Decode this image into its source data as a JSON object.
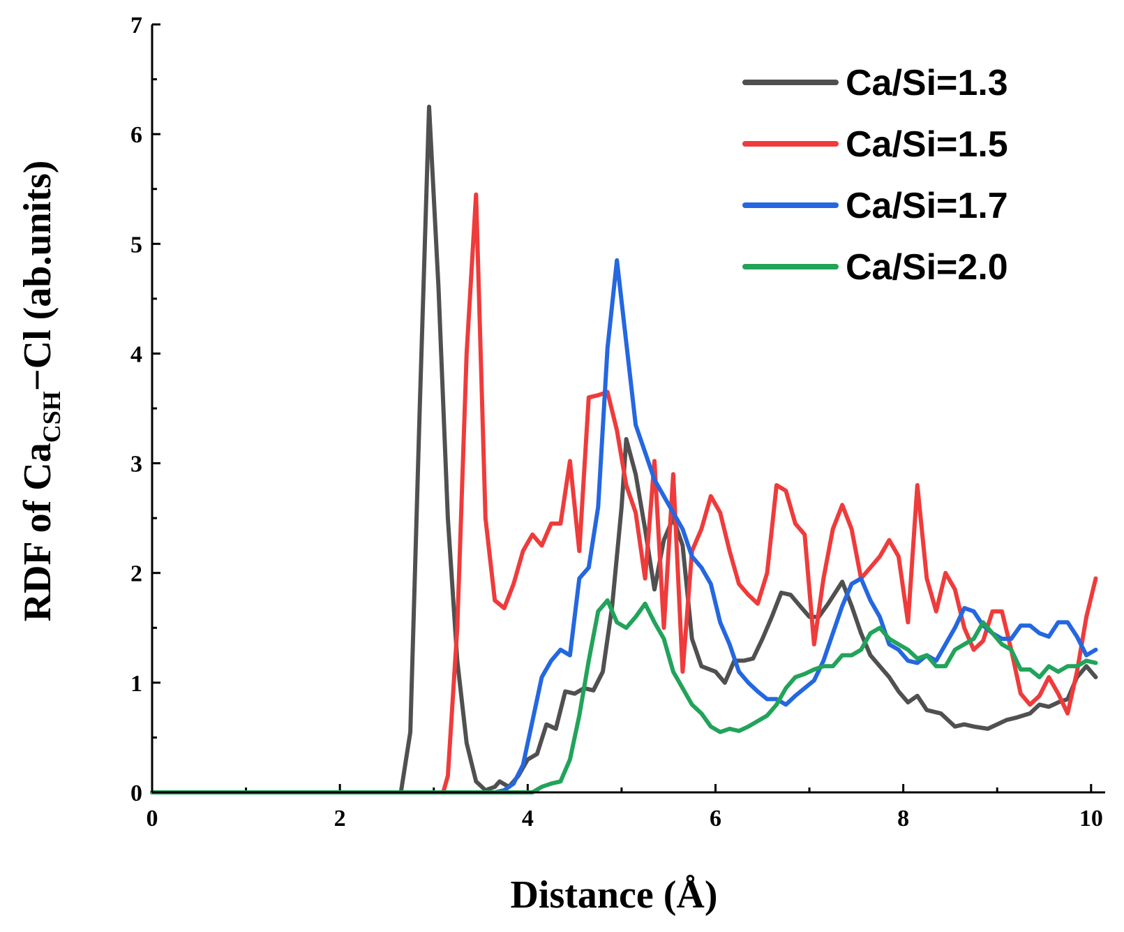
{
  "chart_data": {
    "type": "line",
    "xlabel": "Distance (Å)",
    "ylabel": {
      "prefix": "RDF of Ca",
      "subscript": "CSH",
      "suffix": "−Cl (ab.units)"
    },
    "xlim": [
      0,
      10.15
    ],
    "ylim": [
      0,
      7
    ],
    "x_ticks": [
      0,
      2,
      4,
      6,
      8,
      10
    ],
    "y_ticks": [
      0,
      1,
      2,
      3,
      4,
      5,
      6,
      7
    ],
    "legend_position": "top-right",
    "series": [
      {
        "name": "Ca/Si=1.3",
        "color": "#505050",
        "points": [
          [
            0,
            0
          ],
          [
            2.6,
            0
          ],
          [
            2.65,
            0
          ],
          [
            2.75,
            0.55
          ],
          [
            2.85,
            3.5
          ],
          [
            2.95,
            6.25
          ],
          [
            3.05,
            4.6
          ],
          [
            3.15,
            2.5
          ],
          [
            3.25,
            1.2
          ],
          [
            3.35,
            0.45
          ],
          [
            3.45,
            0.1
          ],
          [
            3.55,
            0.02
          ],
          [
            3.65,
            0.05
          ],
          [
            3.7,
            0.1
          ],
          [
            3.8,
            0.05
          ],
          [
            3.9,
            0.15
          ],
          [
            4.0,
            0.3
          ],
          [
            4.1,
            0.35
          ],
          [
            4.2,
            0.62
          ],
          [
            4.3,
            0.58
          ],
          [
            4.4,
            0.92
          ],
          [
            4.5,
            0.9
          ],
          [
            4.6,
            0.95
          ],
          [
            4.7,
            0.93
          ],
          [
            4.8,
            1.1
          ],
          [
            4.9,
            1.7
          ],
          [
            5.0,
            2.6
          ],
          [
            5.05,
            3.22
          ],
          [
            5.15,
            2.9
          ],
          [
            5.25,
            2.4
          ],
          [
            5.35,
            1.85
          ],
          [
            5.45,
            2.3
          ],
          [
            5.55,
            2.5
          ],
          [
            5.65,
            2.25
          ],
          [
            5.75,
            1.4
          ],
          [
            5.85,
            1.15
          ],
          [
            6.0,
            1.1
          ],
          [
            6.1,
            1.0
          ],
          [
            6.2,
            1.2
          ],
          [
            6.3,
            1.2
          ],
          [
            6.4,
            1.22
          ],
          [
            6.5,
            1.4
          ],
          [
            6.6,
            1.6
          ],
          [
            6.7,
            1.82
          ],
          [
            6.8,
            1.8
          ],
          [
            6.9,
            1.7
          ],
          [
            7.0,
            1.6
          ],
          [
            7.1,
            1.6
          ],
          [
            7.2,
            1.72
          ],
          [
            7.35,
            1.92
          ],
          [
            7.45,
            1.7
          ],
          [
            7.55,
            1.45
          ],
          [
            7.65,
            1.25
          ],
          [
            7.75,
            1.15
          ],
          [
            7.85,
            1.05
          ],
          [
            7.95,
            0.92
          ],
          [
            8.05,
            0.82
          ],
          [
            8.15,
            0.88
          ],
          [
            8.25,
            0.75
          ],
          [
            8.4,
            0.72
          ],
          [
            8.55,
            0.6
          ],
          [
            8.65,
            0.62
          ],
          [
            8.75,
            0.6
          ],
          [
            8.9,
            0.58
          ],
          [
            9.0,
            0.62
          ],
          [
            9.1,
            0.66
          ],
          [
            9.2,
            0.68
          ],
          [
            9.35,
            0.72
          ],
          [
            9.45,
            0.8
          ],
          [
            9.55,
            0.78
          ],
          [
            9.65,
            0.82
          ],
          [
            9.75,
            0.85
          ],
          [
            9.85,
            1.05
          ],
          [
            9.95,
            1.15
          ],
          [
            10.05,
            1.05
          ]
        ]
      },
      {
        "name": "Ca/Si=1.5",
        "color": "#ef3b3b",
        "points": [
          [
            0,
            0
          ],
          [
            3.1,
            0
          ],
          [
            3.15,
            0.15
          ],
          [
            3.25,
            1.5
          ],
          [
            3.35,
            4.0
          ],
          [
            3.45,
            5.45
          ],
          [
            3.55,
            2.5
          ],
          [
            3.65,
            1.75
          ],
          [
            3.75,
            1.68
          ],
          [
            3.85,
            1.9
          ],
          [
            3.95,
            2.2
          ],
          [
            4.05,
            2.35
          ],
          [
            4.15,
            2.25
          ],
          [
            4.25,
            2.45
          ],
          [
            4.35,
            2.45
          ],
          [
            4.45,
            3.02
          ],
          [
            4.55,
            2.2
          ],
          [
            4.65,
            3.6
          ],
          [
            4.75,
            3.62
          ],
          [
            4.85,
            3.65
          ],
          [
            4.95,
            3.3
          ],
          [
            5.05,
            2.8
          ],
          [
            5.15,
            2.55
          ],
          [
            5.25,
            1.95
          ],
          [
            5.35,
            3.02
          ],
          [
            5.45,
            1.5
          ],
          [
            5.55,
            2.9
          ],
          [
            5.65,
            1.1
          ],
          [
            5.75,
            2.2
          ],
          [
            5.85,
            2.4
          ],
          [
            5.95,
            2.7
          ],
          [
            6.05,
            2.55
          ],
          [
            6.15,
            2.2
          ],
          [
            6.25,
            1.9
          ],
          [
            6.35,
            1.8
          ],
          [
            6.45,
            1.72
          ],
          [
            6.55,
            2.0
          ],
          [
            6.65,
            2.8
          ],
          [
            6.75,
            2.75
          ],
          [
            6.85,
            2.45
          ],
          [
            6.95,
            2.35
          ],
          [
            7.05,
            1.35
          ],
          [
            7.15,
            1.95
          ],
          [
            7.25,
            2.4
          ],
          [
            7.35,
            2.62
          ],
          [
            7.45,
            2.4
          ],
          [
            7.55,
            1.95
          ],
          [
            7.65,
            2.05
          ],
          [
            7.75,
            2.15
          ],
          [
            7.85,
            2.3
          ],
          [
            7.95,
            2.15
          ],
          [
            8.05,
            1.55
          ],
          [
            8.15,
            2.8
          ],
          [
            8.25,
            1.95
          ],
          [
            8.35,
            1.65
          ],
          [
            8.45,
            2.0
          ],
          [
            8.55,
            1.85
          ],
          [
            8.65,
            1.5
          ],
          [
            8.75,
            1.3
          ],
          [
            8.85,
            1.38
          ],
          [
            8.95,
            1.65
          ],
          [
            9.05,
            1.65
          ],
          [
            9.15,
            1.3
          ],
          [
            9.25,
            0.9
          ],
          [
            9.35,
            0.8
          ],
          [
            9.45,
            0.88
          ],
          [
            9.55,
            1.05
          ],
          [
            9.65,
            0.9
          ],
          [
            9.75,
            0.72
          ],
          [
            9.85,
            1.1
          ],
          [
            9.95,
            1.6
          ],
          [
            10.05,
            1.95
          ]
        ]
      },
      {
        "name": "Ca/Si=1.7",
        "color": "#2467e0",
        "points": [
          [
            0,
            0
          ],
          [
            3.65,
            0
          ],
          [
            3.75,
            0.02
          ],
          [
            3.85,
            0.08
          ],
          [
            3.95,
            0.25
          ],
          [
            4.05,
            0.65
          ],
          [
            4.15,
            1.05
          ],
          [
            4.25,
            1.2
          ],
          [
            4.35,
            1.3
          ],
          [
            4.45,
            1.25
          ],
          [
            4.55,
            1.95
          ],
          [
            4.65,
            2.05
          ],
          [
            4.75,
            2.6
          ],
          [
            4.85,
            4.05
          ],
          [
            4.95,
            4.85
          ],
          [
            5.05,
            4.1
          ],
          [
            5.15,
            3.35
          ],
          [
            5.25,
            3.1
          ],
          [
            5.35,
            2.85
          ],
          [
            5.45,
            2.7
          ],
          [
            5.55,
            2.55
          ],
          [
            5.65,
            2.4
          ],
          [
            5.75,
            2.15
          ],
          [
            5.85,
            2.05
          ],
          [
            5.95,
            1.9
          ],
          [
            6.05,
            1.55
          ],
          [
            6.15,
            1.35
          ],
          [
            6.25,
            1.1
          ],
          [
            6.35,
            1.0
          ],
          [
            6.45,
            0.92
          ],
          [
            6.55,
            0.85
          ],
          [
            6.65,
            0.85
          ],
          [
            6.75,
            0.8
          ],
          [
            6.85,
            0.88
          ],
          [
            6.95,
            0.95
          ],
          [
            7.05,
            1.02
          ],
          [
            7.15,
            1.2
          ],
          [
            7.25,
            1.45
          ],
          [
            7.35,
            1.7
          ],
          [
            7.45,
            1.9
          ],
          [
            7.55,
            1.95
          ],
          [
            7.65,
            1.75
          ],
          [
            7.75,
            1.6
          ],
          [
            7.85,
            1.35
          ],
          [
            7.95,
            1.3
          ],
          [
            8.05,
            1.2
          ],
          [
            8.15,
            1.18
          ],
          [
            8.25,
            1.25
          ],
          [
            8.35,
            1.2
          ],
          [
            8.45,
            1.35
          ],
          [
            8.55,
            1.5
          ],
          [
            8.65,
            1.68
          ],
          [
            8.75,
            1.65
          ],
          [
            8.85,
            1.52
          ],
          [
            8.95,
            1.45
          ],
          [
            9.05,
            1.4
          ],
          [
            9.15,
            1.4
          ],
          [
            9.25,
            1.52
          ],
          [
            9.35,
            1.52
          ],
          [
            9.45,
            1.45
          ],
          [
            9.55,
            1.42
          ],
          [
            9.65,
            1.55
          ],
          [
            9.75,
            1.55
          ],
          [
            9.85,
            1.42
          ],
          [
            9.95,
            1.25
          ],
          [
            10.05,
            1.3
          ]
        ]
      },
      {
        "name": "Ca/Si=2.0",
        "color": "#22a35a",
        "points": [
          [
            0,
            0
          ],
          [
            4.05,
            0
          ],
          [
            4.15,
            0.05
          ],
          [
            4.25,
            0.08
          ],
          [
            4.35,
            0.1
          ],
          [
            4.45,
            0.3
          ],
          [
            4.55,
            0.7
          ],
          [
            4.65,
            1.2
          ],
          [
            4.75,
            1.65
          ],
          [
            4.85,
            1.75
          ],
          [
            4.95,
            1.55
          ],
          [
            5.05,
            1.5
          ],
          [
            5.15,
            1.6
          ],
          [
            5.25,
            1.72
          ],
          [
            5.35,
            1.55
          ],
          [
            5.45,
            1.4
          ],
          [
            5.55,
            1.1
          ],
          [
            5.65,
            0.95
          ],
          [
            5.75,
            0.8
          ],
          [
            5.85,
            0.72
          ],
          [
            5.95,
            0.6
          ],
          [
            6.05,
            0.55
          ],
          [
            6.15,
            0.58
          ],
          [
            6.25,
            0.56
          ],
          [
            6.35,
            0.6
          ],
          [
            6.45,
            0.65
          ],
          [
            6.55,
            0.7
          ],
          [
            6.65,
            0.8
          ],
          [
            6.75,
            0.95
          ],
          [
            6.85,
            1.05
          ],
          [
            6.95,
            1.08
          ],
          [
            7.05,
            1.12
          ],
          [
            7.15,
            1.15
          ],
          [
            7.25,
            1.15
          ],
          [
            7.35,
            1.25
          ],
          [
            7.45,
            1.25
          ],
          [
            7.55,
            1.3
          ],
          [
            7.65,
            1.45
          ],
          [
            7.75,
            1.5
          ],
          [
            7.85,
            1.4
          ],
          [
            7.95,
            1.35
          ],
          [
            8.05,
            1.3
          ],
          [
            8.15,
            1.22
          ],
          [
            8.25,
            1.25
          ],
          [
            8.35,
            1.15
          ],
          [
            8.45,
            1.15
          ],
          [
            8.55,
            1.3
          ],
          [
            8.65,
            1.35
          ],
          [
            8.75,
            1.4
          ],
          [
            8.85,
            1.55
          ],
          [
            8.95,
            1.45
          ],
          [
            9.05,
            1.35
          ],
          [
            9.15,
            1.3
          ],
          [
            9.25,
            1.12
          ],
          [
            9.35,
            1.12
          ],
          [
            9.45,
            1.05
          ],
          [
            9.55,
            1.15
          ],
          [
            9.65,
            1.1
          ],
          [
            9.75,
            1.15
          ],
          [
            9.85,
            1.15
          ],
          [
            9.95,
            1.2
          ],
          [
            10.05,
            1.18
          ]
        ]
      }
    ]
  }
}
